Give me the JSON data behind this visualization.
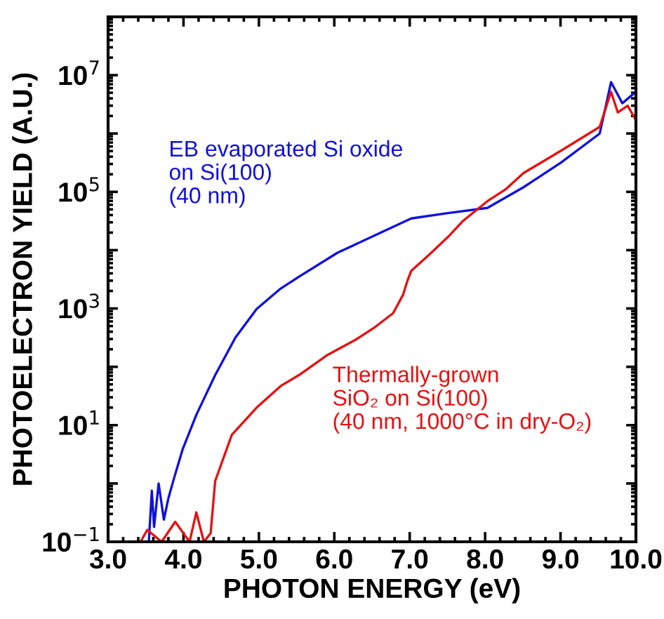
{
  "chart_data": {
    "type": "line",
    "xlabel": "PHOTON ENERGY (eV)",
    "ylabel": "PHOTOELECTRON YIELD (A.U.)",
    "log": "y",
    "xlim": [
      3.0,
      10.0
    ],
    "xticks": [
      {
        "value": 3,
        "label": "3.0"
      },
      {
        "value": 4,
        "label": "4.0"
      },
      {
        "value": 5,
        "label": "5.0"
      },
      {
        "value": 6,
        "label": "6.0"
      },
      {
        "value": 7,
        "label": "7.0"
      },
      {
        "value": 8,
        "label": "8.0"
      },
      {
        "value": 9,
        "label": "9.0"
      },
      {
        "value": 10,
        "label": "10.0"
      }
    ],
    "ylim": [
      0.1,
      100000000
    ],
    "yticks": [
      {
        "value": 0.1,
        "label": "10$^{−1}$"
      },
      {
        "value": 1,
        "label": null
      },
      {
        "value": 10,
        "label": "10$^{1}$"
      },
      {
        "value": 100,
        "label": null
      },
      {
        "value": 1000,
        "label": "10$^{3}$"
      },
      {
        "value": 10000,
        "label": null
      },
      {
        "value": 100000,
        "label": "10$^{5}$"
      },
      {
        "value": 1000000,
        "label": null
      },
      {
        "value": 10000000,
        "label": "10$^{7}$"
      }
    ],
    "grid": false,
    "legend": false,
    "marker": "none",
    "line_style": "solid",
    "series": [
      {
        "name": "EB evaporated Si oxide\non Si(100)\n(40 nm)",
        "color": "#1010e0",
        "x": [
          3.54,
          3.58,
          3.61,
          3.67,
          3.74,
          3.8,
          3.88,
          3.99,
          4.17,
          4.42,
          4.69,
          4.97,
          5.29,
          5.53,
          6.04,
          6.54,
          7.02,
          7.49,
          8.03,
          8.51,
          9.01,
          9.52,
          9.67,
          9.82,
          10.0
        ],
        "values": [
          0.1,
          0.75,
          0.18,
          1.0,
          0.24,
          0.56,
          1.3,
          3.9,
          15,
          72,
          320,
          980,
          2200,
          3500,
          9000,
          18000,
          35000,
          43000,
          53000,
          120000,
          320000,
          1000000,
          7600000,
          3300000,
          5200000
        ]
      },
      {
        "name": "Thermally-grown\nSiO₂ on Si(100)\n(40 nm, 1000°C in dry-O₂)",
        "color": "#e81010",
        "x": [
          3.43,
          3.52,
          3.71,
          3.89,
          4.08,
          4.17,
          4.27,
          4.36,
          4.42,
          4.64,
          4.97,
          5.29,
          5.53,
          5.91,
          6.28,
          6.54,
          6.78,
          6.91,
          6.97,
          7.02,
          7.28,
          7.53,
          7.71,
          8.03,
          8.27,
          8.51,
          9.01,
          9.52,
          9.67,
          9.76,
          9.89,
          10.0
        ],
        "values": [
          0.1,
          0.16,
          0.1,
          0.22,
          0.1,
          0.32,
          0.1,
          0.14,
          1.1,
          6.8,
          20,
          47,
          72,
          160,
          290,
          480,
          830,
          1700,
          3000,
          4400,
          8900,
          18000,
          32000,
          69000,
          110000,
          210000,
          510000,
          1300000,
          5200000,
          2300000,
          3000000,
          1700000
        ]
      }
    ]
  }
}
